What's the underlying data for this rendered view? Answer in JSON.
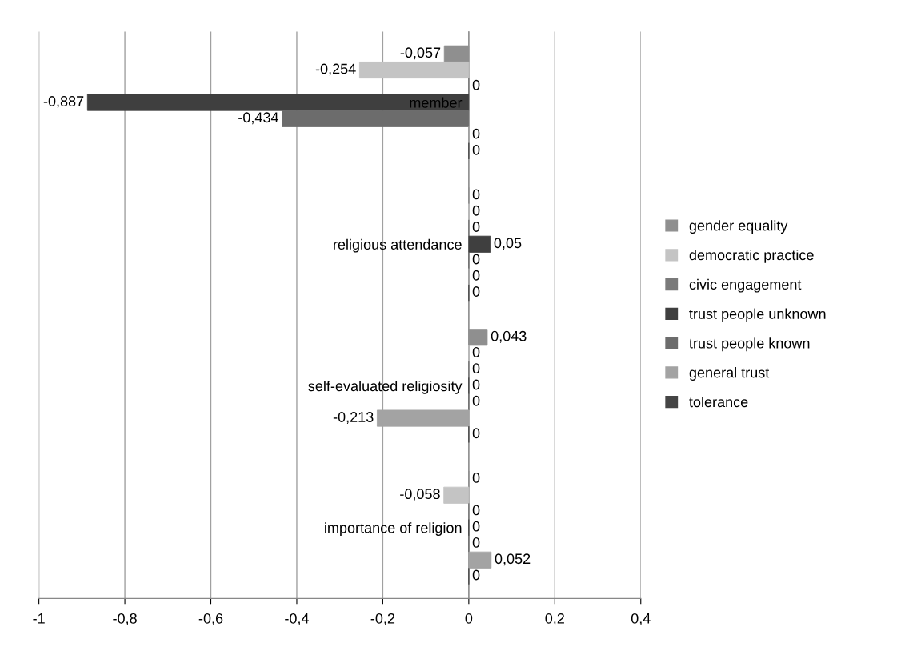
{
  "chart_data": {
    "type": "bar",
    "orientation": "horizontal",
    "categories": [
      "member",
      "religious attendance",
      "self-evaluated religiosity",
      "importance of religion"
    ],
    "series": [
      {
        "name": "gender equality",
        "color": "#8f8f8f",
        "values": [
          -0.057,
          0,
          0.043,
          0
        ],
        "value_labels": [
          "-0,057",
          "0",
          "0,043",
          "0"
        ]
      },
      {
        "name": "democratic practice",
        "color": "#c4c4c4",
        "values": [
          -0.254,
          0,
          0,
          -0.058
        ],
        "value_labels": [
          "-0,254",
          "0",
          "0",
          "-0,058"
        ]
      },
      {
        "name": "civic engagement",
        "color": "#7a7a7a",
        "values": [
          0,
          0,
          0,
          0
        ],
        "value_labels": [
          "0",
          "0",
          "0",
          "0"
        ]
      },
      {
        "name": "trust people unknown",
        "color": "#3f3f3f",
        "values": [
          -0.887,
          0.05,
          0,
          0
        ],
        "value_labels": [
          "-0,887",
          "0,05",
          "0",
          "0"
        ]
      },
      {
        "name": "trust people known",
        "color": "#6c6c6c",
        "values": [
          -0.434,
          0,
          0,
          0
        ],
        "value_labels": [
          "-0,434",
          "0",
          "0",
          "0"
        ]
      },
      {
        "name": "general trust",
        "color": "#a3a3a3",
        "values": [
          0,
          0,
          -0.213,
          0.052
        ],
        "value_labels": [
          "0",
          "0",
          "-0,213",
          "0,052"
        ]
      },
      {
        "name": "tolerance",
        "color": "#454545",
        "values": [
          0,
          0,
          0,
          0
        ],
        "value_labels": [
          "0",
          "0",
          "0",
          "0"
        ]
      }
    ],
    "xlim": [
      -1,
      0.4
    ],
    "xticks": [
      {
        "value": -1,
        "label": "-1"
      },
      {
        "value": -0.8,
        "label": "-0,8"
      },
      {
        "value": -0.6,
        "label": "-0,6"
      },
      {
        "value": -0.4,
        "label": "-0,4"
      },
      {
        "value": -0.2,
        "label": "-0,2"
      },
      {
        "value": 0,
        "label": "0"
      },
      {
        "value": 0.2,
        "label": "0,2"
      },
      {
        "value": 0.4,
        "label": "0,4"
      }
    ],
    "grid": "x",
    "legend": "right"
  }
}
